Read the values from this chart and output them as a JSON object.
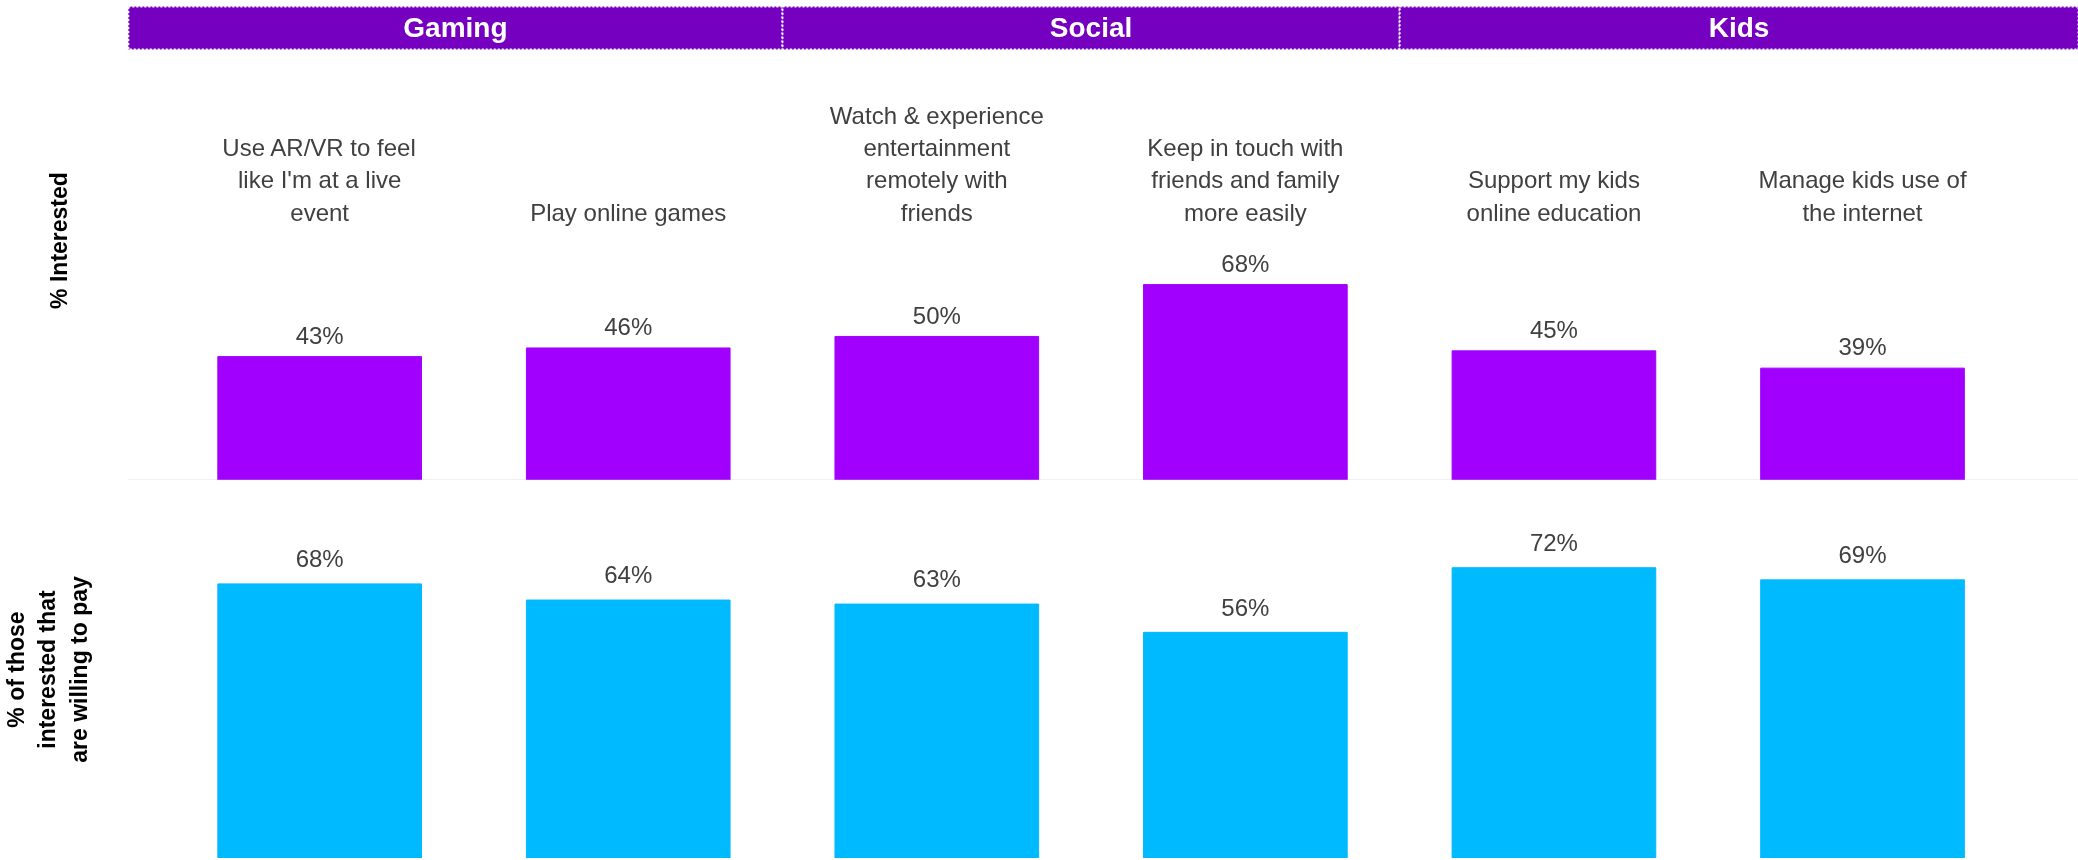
{
  "chart_data": [
    {
      "type": "bar",
      "ylabel": "% Interested",
      "annotations": [
        "Gaming",
        "Social",
        "Kids"
      ],
      "categories": [
        "Use AR/VR to feel like I'm at a live event",
        "Play online games",
        "Watch & experience entertainment remotely with friends",
        "Keep in touch with friends and family more easily",
        "Support my kids online education",
        "Manage kids use of the internet"
      ],
      "values": [
        43,
        46,
        50,
        68,
        45,
        39
      ],
      "value_labels": [
        "43%",
        "46%",
        "50%",
        "68%",
        "45%",
        "39%"
      ],
      "color": "#a100ff"
    },
    {
      "type": "bar",
      "ylabel": "% of those interested that are willing to pay",
      "tick_labels": false,
      "categories": [
        "Use AR/VR to feel like I'm at a live event",
        "Play online games",
        "Watch & experience entertainment remotely with friends",
        "Keep in touch with friends and family more easily",
        "Support my kids online education",
        "Manage kids use of the internet"
      ],
      "values": [
        68,
        64,
        63,
        56,
        72,
        69
      ],
      "value_labels": [
        "68%",
        "64%",
        "63%",
        "56%",
        "72%",
        "69%"
      ],
      "color": "#00baff"
    }
  ]
}
